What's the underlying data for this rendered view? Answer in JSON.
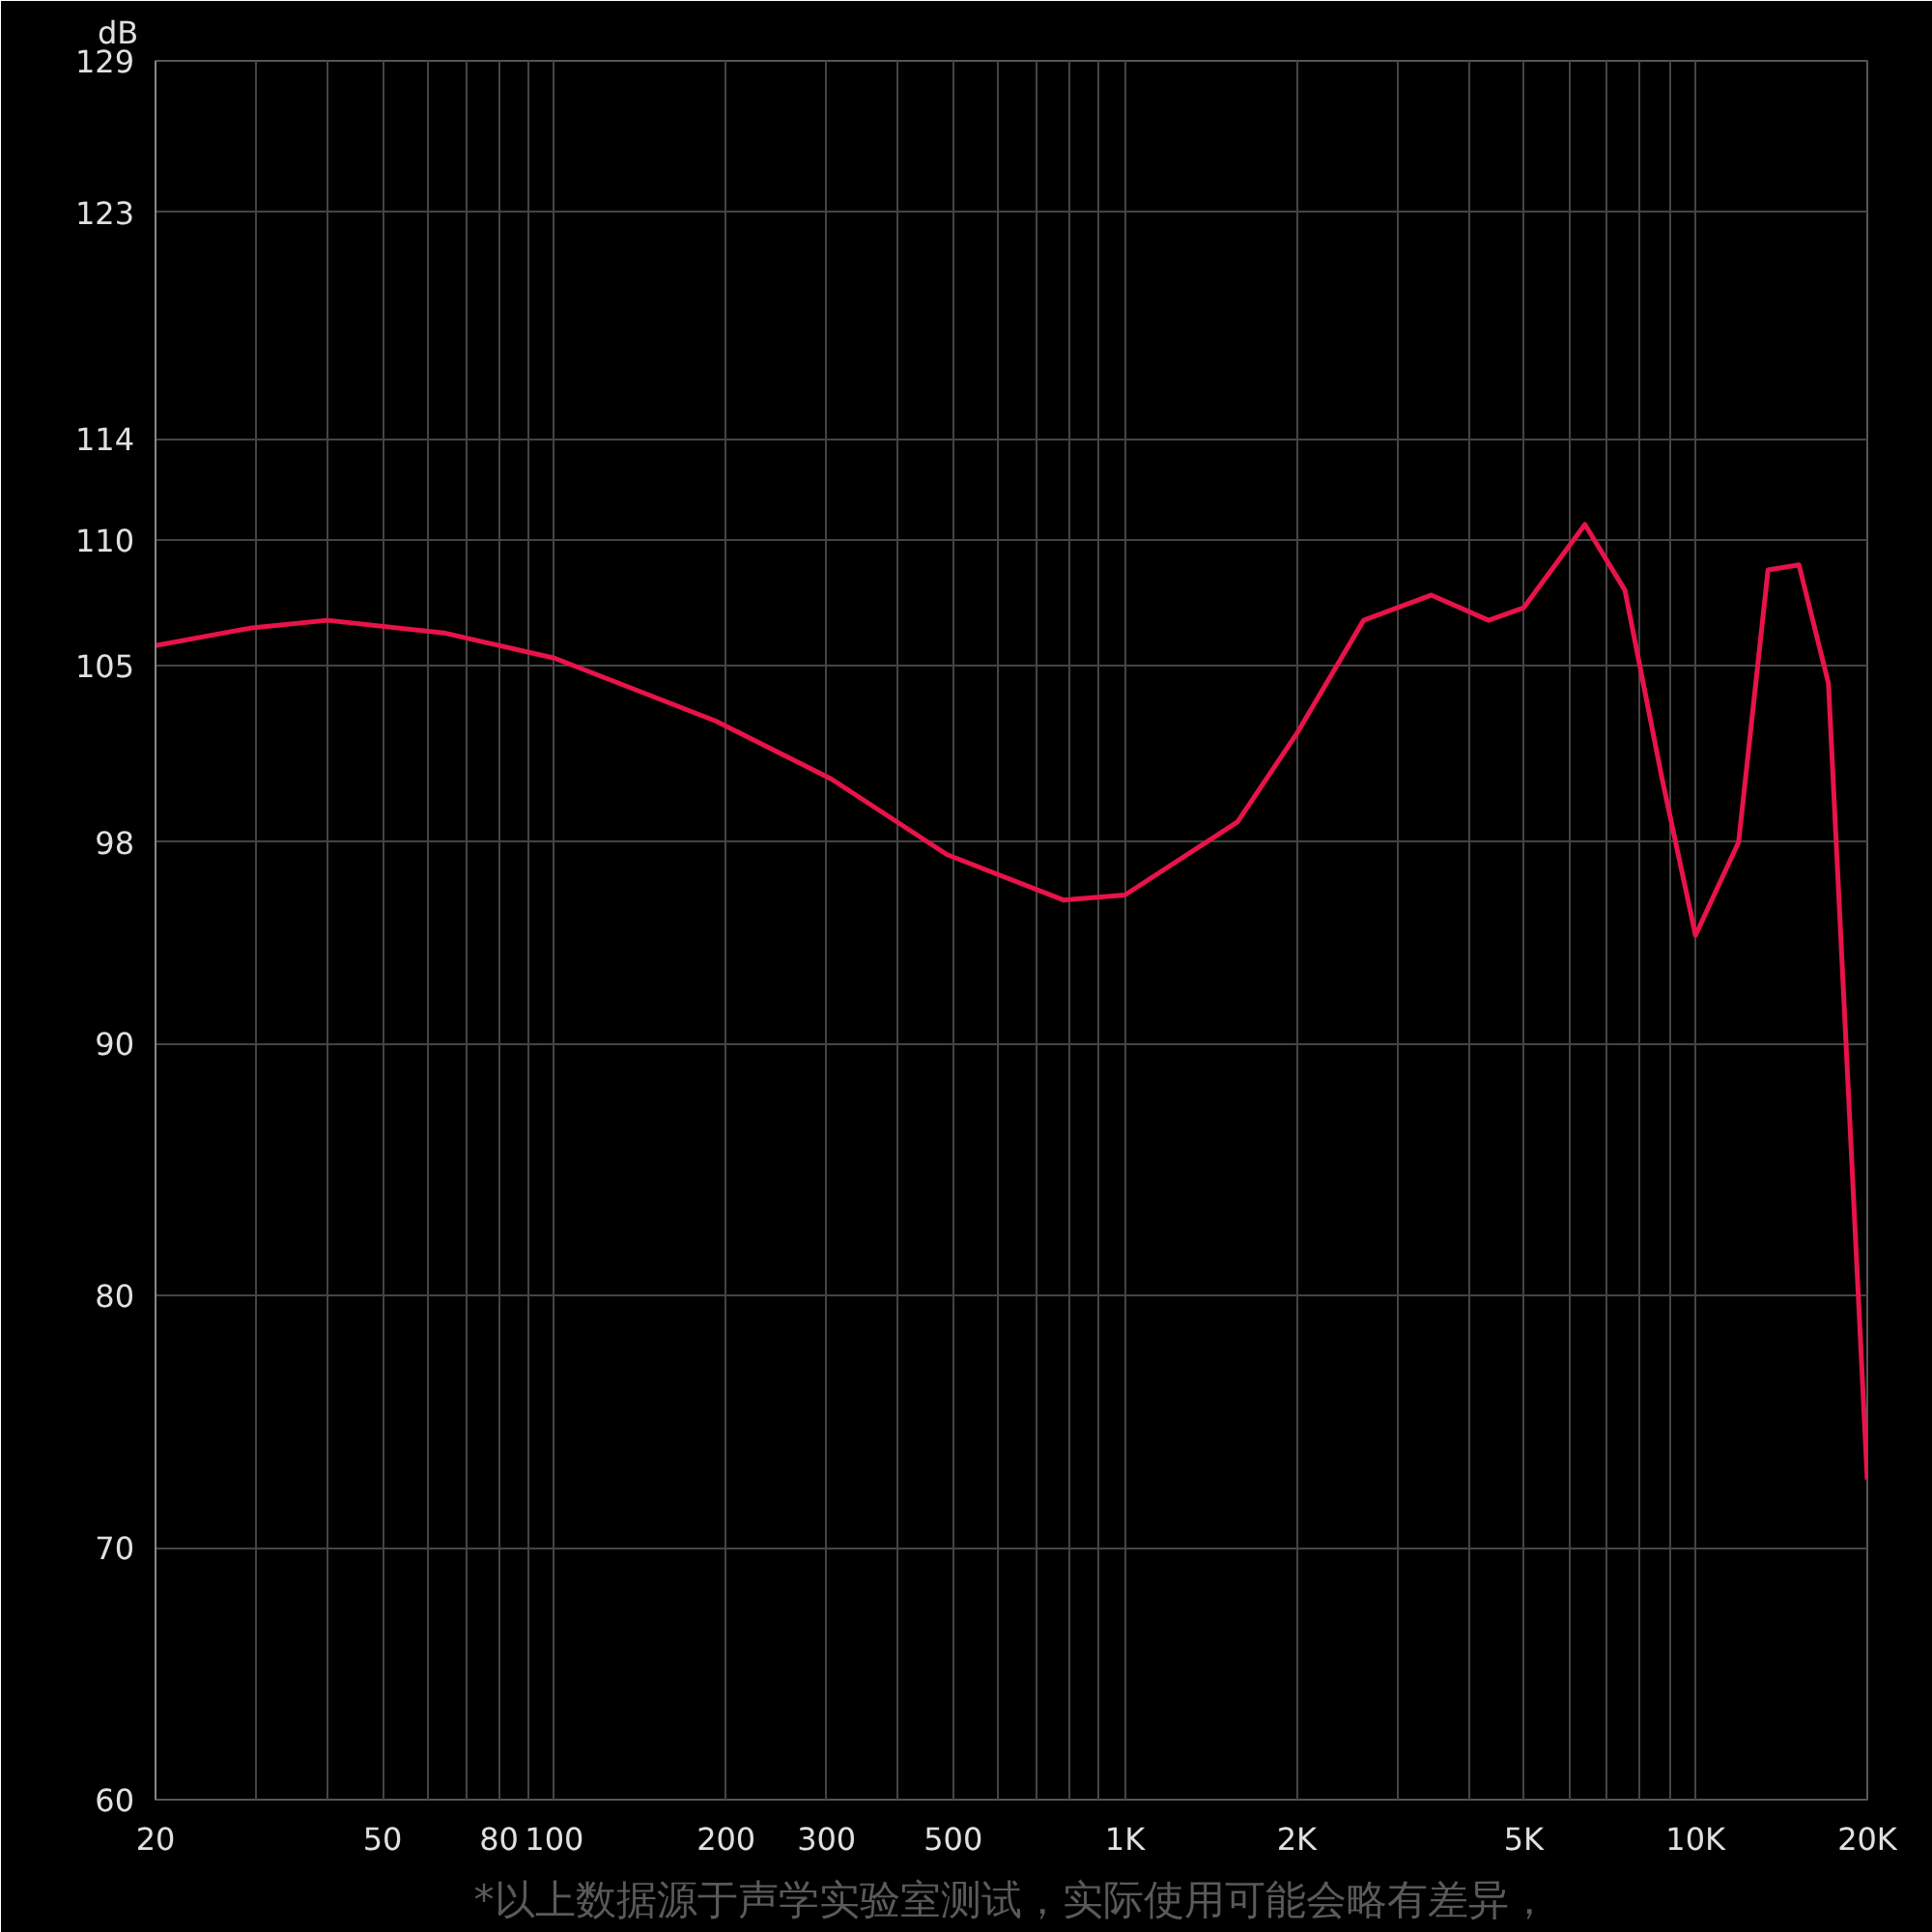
{
  "chart_data": {
    "type": "line",
    "ylabel": "dB",
    "annotations": [
      "*以上数据源于声学实验室测试，实际使用可能会略有差异，"
    ],
    "log": "x",
    "grid": true,
    "marker": "none",
    "line_style": "solid",
    "xlim": [
      20,
      20000
    ],
    "ylim": [
      60,
      129
    ],
    "xticks": [
      20,
      {
        "value": 30,
        "label": null
      },
      {
        "value": 40,
        "label": null
      },
      50,
      {
        "value": 60,
        "label": null
      },
      {
        "value": 70,
        "label": null
      },
      80,
      {
        "value": 90,
        "label": null
      },
      100,
      200,
      300,
      {
        "value": 400,
        "label": null
      },
      500,
      {
        "value": 600,
        "label": null
      },
      {
        "value": 700,
        "label": null
      },
      {
        "value": 800,
        "label": null
      },
      {
        "value": 900,
        "label": null
      },
      {
        "value": 1000,
        "label": "1K"
      },
      {
        "value": 2000,
        "label": "2K"
      },
      {
        "value": 3000,
        "label": null
      },
      {
        "value": 4000,
        "label": null
      },
      {
        "value": 5000,
        "label": "5K"
      },
      {
        "value": 6000,
        "label": null
      },
      {
        "value": 7000,
        "label": null
      },
      {
        "value": 8000,
        "label": null
      },
      {
        "value": 9000,
        "label": null
      },
      {
        "value": 10000,
        "label": "10K"
      },
      {
        "value": 20000,
        "label": "20K"
      }
    ],
    "yticks": [
      60,
      70,
      80,
      90,
      98,
      105,
      110,
      114,
      123,
      129
    ],
    "x": [
      20,
      29.5,
      40,
      64,
      100,
      192,
      306,
      488,
      780,
      1000,
      1575,
      2000,
      2620,
      3440,
      4340,
      5000,
      6400,
      7520,
      8740,
      10000,
      11900,
      13400,
      15180,
      17100,
      20000
    ],
    "series": [
      {
        "color": "#e8134a",
        "values": [
          105.8,
          106.5,
          106.8,
          106.3,
          105.3,
          102.8,
          100.5,
          97.5,
          95.7,
          95.9,
          98.8,
          102.3,
          106.8,
          107.8,
          106.8,
          107.3,
          110.6,
          108,
          100.5,
          94.3,
          98,
          108.8,
          109,
          104.3,
          72.7
        ]
      }
    ]
  }
}
